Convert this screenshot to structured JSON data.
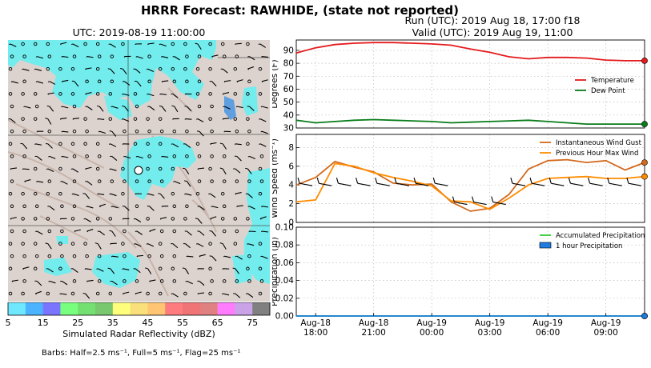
{
  "title": "HRRR Forecast: RAWHIDE, (state not reported)",
  "run_line": "Run (UTC): 2019 Aug 18, 17:00 f18",
  "valid_line": "Valid (UTC): 2019 Aug 19, 11:00",
  "map": {
    "title": "UTC: 2019-08-19 11:00:00",
    "colorbar_label": "Simulated Radar Reflectivity (dBZ)",
    "colorbar_ticks": [
      "5",
      "15",
      "25",
      "35",
      "45",
      "55",
      "65",
      "75"
    ],
    "colorbar_colors": [
      "#6fe8ff",
      "#4cb3ff",
      "#7a74ff",
      "#77ff7d",
      "#75e072",
      "#79c76e",
      "#ffff7c",
      "#fae07a",
      "#ffc573",
      "#ff7c7e",
      "#f07476",
      "#e08080",
      "#ff7cff",
      "#c9a2e8",
      "#808080"
    ],
    "barbs_note": "Barbs: Half=2.5 ms⁻¹, Full=5 ms⁻¹, Flag=25 ms⁻¹"
  },
  "chart_data": [
    {
      "type": "line",
      "ylabel": "Degrees (F)",
      "ylim": [
        30,
        98
      ],
      "yticks": [
        30,
        40,
        50,
        60,
        70,
        80,
        90
      ],
      "x_hours_utc": [
        17,
        18,
        19,
        20,
        21,
        22,
        23,
        0,
        1,
        2,
        3,
        4,
        5,
        6,
        7,
        8,
        9,
        10,
        11
      ],
      "series": [
        {
          "name": "Temperature",
          "color": "#e41a1c",
          "values": [
            88,
            92,
            94.5,
            95.5,
            96,
            96,
            95.5,
            95,
            94,
            91,
            88.5,
            85,
            83.5,
            84.5,
            84.5,
            84,
            82.5,
            82,
            82
          ]
        },
        {
          "name": "Dew Point",
          "color": "#0a7d1a",
          "values": [
            36,
            34,
            35,
            36,
            36.5,
            36,
            35.5,
            35,
            34,
            34.5,
            35,
            35.5,
            36,
            35,
            34,
            33,
            33,
            33,
            33
          ]
        }
      ],
      "legend": "right"
    },
    {
      "type": "line",
      "ylabel": "Wind Speed (ms⁻¹)",
      "ylim": [
        0,
        9.4
      ],
      "yticks": [
        0,
        2,
        4,
        6,
        8
      ],
      "x_hours_utc": [
        17,
        18,
        19,
        20,
        21,
        22,
        23,
        0,
        1,
        2,
        3,
        4,
        5,
        6,
        7,
        8,
        9,
        10,
        11
      ],
      "series": [
        {
          "name": "Instantaneous Wind Gust",
          "color": "#d2691e",
          "values": [
            4.0,
            4.8,
            6.5,
            5.9,
            5.4,
            4.2,
            4.0,
            4.1,
            2.2,
            1.2,
            1.5,
            3.0,
            5.7,
            6.6,
            6.7,
            6.4,
            6.6,
            5.6,
            6.4
          ]
        },
        {
          "name": "Previous Hour Max Wind",
          "color": "#ff8c00",
          "values": [
            2.2,
            2.4,
            6.3,
            6.0,
            5.3,
            4.8,
            4.4,
            3.9,
            2.3,
            2.2,
            1.4,
            2.6,
            4.0,
            4.7,
            4.8,
            4.9,
            4.7,
            4.7,
            4.9
          ]
        }
      ],
      "legend": "top-right"
    },
    {
      "type": "line",
      "ylabel": "Precipitation (in)",
      "ylim": [
        0,
        0.1
      ],
      "yticks": [
        "0.00",
        "0.02",
        "0.04",
        "0.06",
        "0.08",
        "0.10"
      ],
      "x_hours_utc": [
        17,
        18,
        19,
        20,
        21,
        22,
        23,
        0,
        1,
        2,
        3,
        4,
        5,
        6,
        7,
        8,
        9,
        10,
        11
      ],
      "series": [
        {
          "name": "Accumulated Precipitation",
          "color": "#32cd32",
          "values": [
            0,
            0,
            0,
            0,
            0,
            0,
            0,
            0,
            0,
            0,
            0,
            0,
            0,
            0,
            0,
            0,
            0,
            0,
            0
          ]
        },
        {
          "name": "1 hour Precipitation",
          "color": "#1e7be0",
          "values": [
            0,
            0,
            0,
            0,
            0,
            0,
            0,
            0,
            0,
            0,
            0,
            0,
            0,
            0,
            0,
            0,
            0,
            0,
            0
          ]
        }
      ],
      "legend": "top-right",
      "xtick_labels": [
        {
          "hour": 18,
          "line1": "Aug-18",
          "line2": "18:00"
        },
        {
          "hour": 21,
          "line1": "Aug-18",
          "line2": "21:00"
        },
        {
          "hour": 0,
          "line1": "Aug-19",
          "line2": "00:00"
        },
        {
          "hour": 3,
          "line1": "Aug-19",
          "line2": "03:00"
        },
        {
          "hour": 6,
          "line1": "Aug-19",
          "line2": "06:00"
        },
        {
          "hour": 9,
          "line1": "Aug-19",
          "line2": "09:00"
        }
      ]
    }
  ]
}
